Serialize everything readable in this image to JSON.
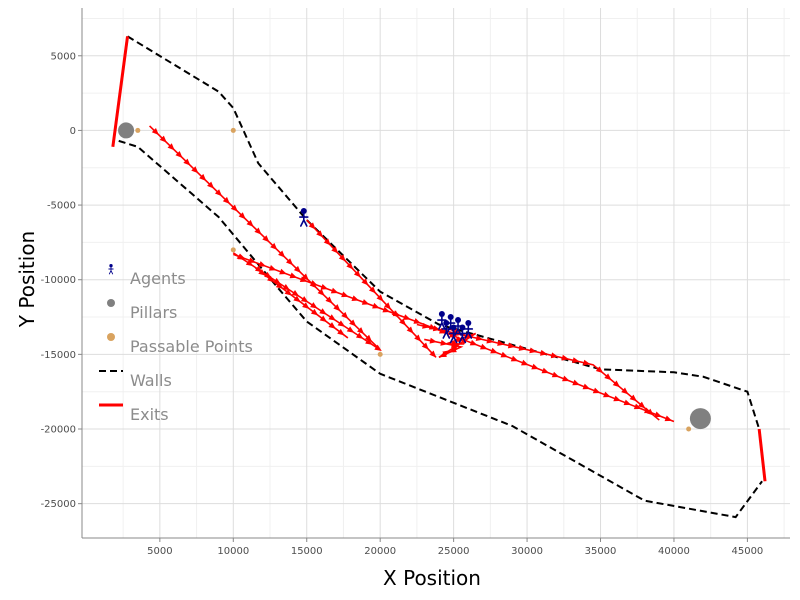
{
  "chart_data": {
    "type": "scatter",
    "title": "",
    "xlabel": "X Position",
    "ylabel": "Y Position",
    "xlim": [
      -300,
      47900
    ],
    "ylim": [
      -27300,
      8200
    ],
    "x_ticks": [
      5000,
      10000,
      15000,
      20000,
      25000,
      30000,
      35000,
      40000,
      45000
    ],
    "y_ticks": [
      5000,
      0,
      -5000,
      -10000,
      -15000,
      -20000,
      -25000
    ],
    "x_tick_labels": [
      "5000",
      "10000",
      "15000",
      "20000",
      "25000",
      "30000",
      "35000",
      "40000",
      "45000"
    ],
    "y_tick_labels": [
      "5000",
      "0",
      "-5000",
      "-10000",
      "-15000",
      "-20000",
      "-25000"
    ],
    "grid": true,
    "legend_placement": "left",
    "legend": [
      {
        "key": "agents",
        "label": "Agents"
      },
      {
        "key": "pillars",
        "label": "Pillars"
      },
      {
        "key": "passable",
        "label": "Passable Points"
      },
      {
        "key": "walls",
        "label": "Walls"
      },
      {
        "key": "exits",
        "label": "Exits"
      }
    ],
    "colors": {
      "agents": "#00008b",
      "pillars": "#808080",
      "passable": "#d9a35f",
      "walls": "#000000",
      "exits": "#ff0000",
      "grid_major": "#dddddd",
      "grid_minor": "#f0f0f0",
      "axis": "#333333"
    },
    "walls": [
      {
        "name": "upper",
        "points": [
          [
            2800,
            6300
          ],
          [
            9000,
            2600
          ],
          [
            10000,
            1500
          ],
          [
            11700,
            -2200
          ],
          [
            15000,
            -6000
          ],
          [
            20000,
            -10800
          ],
          [
            24000,
            -13000
          ],
          [
            35000,
            -16000
          ],
          [
            40000,
            -16200
          ],
          [
            42000,
            -16500
          ],
          [
            45000,
            -17500
          ],
          [
            45800,
            -20000
          ]
        ]
      },
      {
        "name": "lower",
        "points": [
          [
            2200,
            -700
          ],
          [
            3500,
            -1100
          ],
          [
            9000,
            -5800
          ],
          [
            13000,
            -10500
          ],
          [
            15000,
            -12800
          ],
          [
            20000,
            -16300
          ],
          [
            29000,
            -19800
          ],
          [
            38000,
            -24800
          ],
          [
            44200,
            -25900
          ],
          [
            46000,
            -23500
          ]
        ]
      }
    ],
    "exits": [
      {
        "name": "left-exit",
        "points": [
          [
            2800,
            6300
          ],
          [
            1800,
            -1100
          ]
        ]
      },
      {
        "name": "right-exit",
        "points": [
          [
            45800,
            -20000
          ],
          [
            46200,
            -23500
          ]
        ]
      }
    ],
    "pillars": [
      [
        2700,
        0
      ],
      [
        41800,
        -19300
      ]
    ],
    "passable_points": [
      [
        3500,
        0
      ],
      [
        10000,
        0
      ],
      [
        10000,
        -8000
      ],
      [
        20000,
        -15000
      ],
      [
        41000,
        -20000
      ]
    ],
    "agents": [
      [
        14800,
        -5800
      ],
      [
        24200,
        -12700
      ],
      [
        24500,
        -13300
      ],
      [
        24800,
        -12900
      ],
      [
        25000,
        -13600
      ],
      [
        25300,
        -13100
      ],
      [
        25600,
        -13600
      ],
      [
        26000,
        -13300
      ]
    ],
    "paths": [
      {
        "name": "path-1",
        "points": [
          [
            4300,
            300
          ],
          [
            19800,
            -14500
          ]
        ]
      },
      {
        "name": "path-2",
        "points": [
          [
            10000,
            -8200
          ],
          [
            20000,
            -14700
          ]
        ]
      },
      {
        "name": "path-3",
        "points": [
          [
            10000,
            -8300
          ],
          [
            23000,
            -13000
          ],
          [
            40000,
            -19500
          ]
        ]
      },
      {
        "name": "path-4",
        "points": [
          [
            11500,
            -9200
          ],
          [
            17800,
            -13900
          ]
        ]
      },
      {
        "name": "path-5",
        "points": [
          [
            15000,
            -6000
          ],
          [
            23800,
            -15200
          ]
        ]
      },
      {
        "name": "path-6",
        "points": [
          [
            22500,
            -13000
          ],
          [
            34500,
            -15700
          ],
          [
            39000,
            -19400
          ]
        ]
      },
      {
        "name": "path-7",
        "points": [
          [
            23000,
            -14000
          ],
          [
            25500,
            -14500
          ],
          [
            24000,
            -15200
          ],
          [
            26500,
            -13600
          ],
          [
            24500,
            -14300
          ],
          [
            25700,
            -14300
          ]
        ]
      },
      {
        "name": "path-8",
        "points": [
          [
            24700,
            -13300
          ],
          [
            26000,
            -13800
          ]
        ]
      }
    ]
  }
}
